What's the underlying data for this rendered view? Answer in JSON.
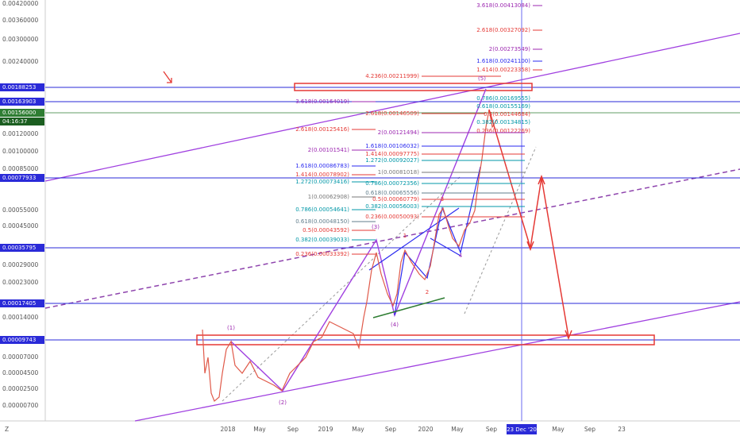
{
  "price_axis": {
    "labels": [
      "0.00420000",
      "0.00360000",
      "0.00300000",
      "0.00240000",
      "0.00120000",
      "0.00100000",
      "0.00085000",
      "0.00055000",
      "0.00045000",
      "0.00029000",
      "0.00023000",
      "0.00014000",
      "0.00007000",
      "0.00004500",
      "0.00002500",
      "0.00000700"
    ],
    "highlighted": [
      {
        "text": "0.00188253",
        "color": "#2a2ad8"
      },
      {
        "text": "0.00163903",
        "color": "#2a2ad8"
      },
      {
        "text": "0.00156000",
        "color": "#2e7d32"
      },
      {
        "text": "04:16:37",
        "color": "#1b5e20"
      },
      {
        "text": "0.00077933",
        "color": "#2a2ad8"
      },
      {
        "text": "0.00035795",
        "color": "#2a2ad8"
      },
      {
        "text": "0.00017405",
        "color": "#2a2ad8"
      },
      {
        "text": "0.00009743",
        "color": "#2a2ad8"
      }
    ]
  },
  "time_axis": {
    "labels": [
      "2018",
      "May",
      "Sep",
      "2019",
      "May",
      "Sep",
      "2020",
      "May",
      "Sep",
      "May",
      "Sep",
      "23"
    ],
    "cursor": "23 Dec '20"
  },
  "fib_labels": [
    {
      "text": "3.618(0.00413084)",
      "color": "#9c27b0"
    },
    {
      "text": "2.618(0.00327092)",
      "color": "#e53935"
    },
    {
      "text": "2(0.00273549)",
      "color": "#9c27b0"
    },
    {
      "text": "1.618(0.00241100)",
      "color": "#2a2af0"
    },
    {
      "text": "1.414(0.00223358)",
      "color": "#e53935"
    },
    {
      "text": "4.236(0.00211999)",
      "color": "#e53935"
    },
    {
      "text": "3.618(0.00164019)",
      "color": "#9c27b0"
    },
    {
      "text": "0.786(0.00169555)",
      "color": "#0097a7"
    },
    {
      "text": "0.618(0.00155169)",
      "color": "#0097a7"
    },
    {
      "text": "2.618(0.00146509)",
      "color": "#e53935"
    },
    {
      "text": "0.5(0.00144684)",
      "color": "#e53935"
    },
    {
      "text": "0.382(0.00134815)",
      "color": "#0097a7"
    },
    {
      "text": "2.618(0.00125416)",
      "color": "#e53935"
    },
    {
      "text": "0.236(0.00122269)",
      "color": "#e53935"
    },
    {
      "text": "2(0.00121494)",
      "color": "#9c27b0"
    },
    {
      "text": "1.618(0.00106032)",
      "color": "#2a2af0"
    },
    {
      "text": "2(0.00101541)",
      "color": "#9c27b0"
    },
    {
      "text": "1.414(0.00097775)",
      "color": "#e53935"
    },
    {
      "text": "1.272(0.00092027)",
      "color": "#0097a7"
    },
    {
      "text": "1.618(0.00086783)",
      "color": "#2a2af0"
    },
    {
      "text": "1(0.00081018)",
      "color": "#777777"
    },
    {
      "text": "1.414(0.00078902)",
      "color": "#e53935"
    },
    {
      "text": "1.272(0.00073416)",
      "color": "#0097a7"
    },
    {
      "text": "0.786(0.00072356)",
      "color": "#0097a7"
    },
    {
      "text": "0.618(0.00065556)",
      "color": "#607d8b"
    },
    {
      "text": "1(0.00062908)",
      "color": "#777777"
    },
    {
      "text": "0.5(0.00060779)",
      "color": "#e53935"
    },
    {
      "text": "0.382(0.00056003)",
      "color": "#0097a7"
    },
    {
      "text": "0.786(0.00054641)",
      "color": "#0097a7"
    },
    {
      "text": "0.236(0.00050093)",
      "color": "#e53935"
    },
    {
      "text": "0.618(0.00048150)",
      "color": "#607d8b"
    },
    {
      "text": "0.5(0.00043592)",
      "color": "#e53935"
    },
    {
      "text": "0.382(0.00039033)",
      "color": "#0097a7"
    },
    {
      "text": "0.236(0.00033392)",
      "color": "#e53935"
    }
  ],
  "wave_labels": [
    {
      "text": "(1)",
      "color": "#9c27b0"
    },
    {
      "text": "(2)",
      "color": "#9c27b0"
    },
    {
      "text": "(3)",
      "color": "#9c27b0"
    },
    {
      "text": "(4)",
      "color": "#9c27b0"
    },
    {
      "text": "(5)",
      "color": "#9c27b0"
    },
    {
      "text": "1",
      "color": "#e53935"
    },
    {
      "text": "2",
      "color": "#e53935"
    },
    {
      "text": "3",
      "color": "#e53935"
    },
    {
      "text": "4",
      "color": "#9c27b0"
    }
  ],
  "logo": "Z"
}
